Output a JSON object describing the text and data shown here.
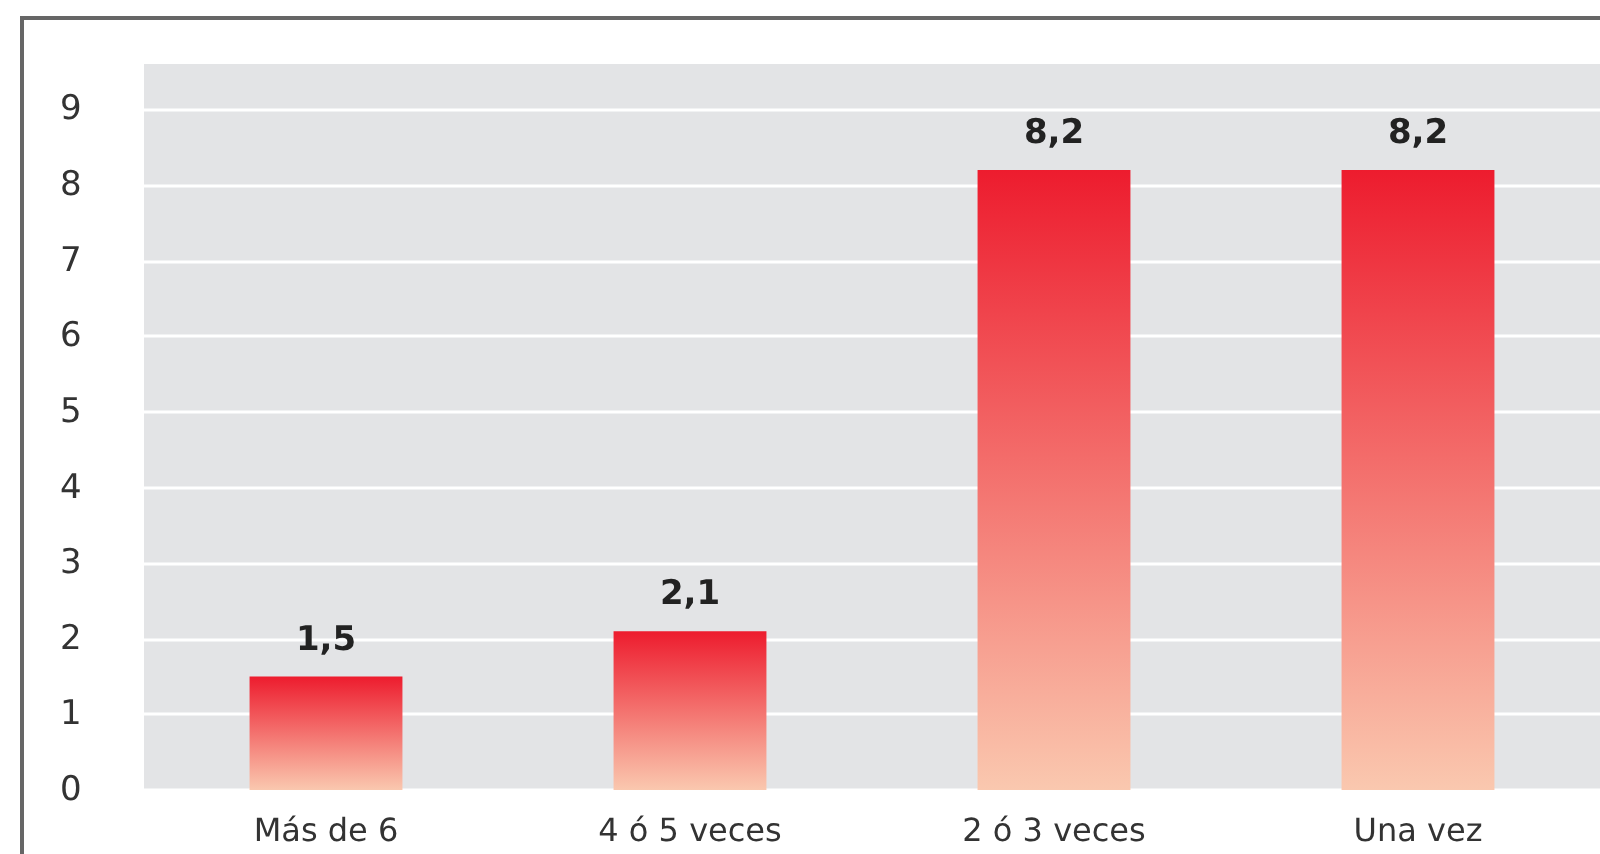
{
  "chart_data": {
    "type": "bar",
    "categories": [
      "Más de 6",
      "4 ó 5 veces",
      "2 ó 3 veces",
      "Una vez"
    ],
    "values": [
      1.5,
      2.1,
      8.2,
      8.2
    ],
    "value_labels": [
      "1,5",
      "2,1",
      "8,2",
      "8,2"
    ],
    "color": "#ed1c2e",
    "ylim": [
      0,
      9.6
    ],
    "yticks": [
      0,
      1,
      2,
      3,
      4,
      5,
      6,
      7,
      8,
      9
    ],
    "grid": "y"
  }
}
